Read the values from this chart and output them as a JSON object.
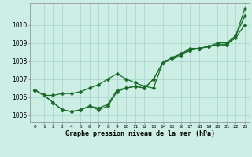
{
  "title": "Graphe pression niveau de la mer (hPa)",
  "bg_color": "#cceee4",
  "grid_color": "#aad9cc",
  "line_color": "#1a6b2a",
  "x_ticks": [
    0,
    1,
    2,
    3,
    4,
    5,
    6,
    7,
    8,
    9,
    10,
    11,
    12,
    13,
    14,
    15,
    16,
    17,
    18,
    19,
    20,
    21,
    22,
    23
  ],
  "ylim": [
    1004.6,
    1011.2
  ],
  "yticks": [
    1005,
    1006,
    1007,
    1008,
    1009,
    1010
  ],
  "line1_x": [
    0,
    1,
    2,
    3,
    4,
    5,
    6,
    7,
    8,
    9,
    10,
    11,
    12,
    13,
    14,
    15,
    16,
    17,
    18,
    19,
    20,
    21,
    22,
    23
  ],
  "line1_y": [
    1006.4,
    1006.1,
    1005.7,
    1005.3,
    1005.2,
    1005.3,
    1005.5,
    1005.3,
    1005.5,
    1006.3,
    1006.5,
    1006.6,
    1006.5,
    1007.0,
    1007.9,
    1008.1,
    1008.3,
    1008.6,
    1008.7,
    1008.8,
    1008.9,
    1008.9,
    1009.4,
    1010.5
  ],
  "line2_x": [
    0,
    1,
    2,
    3,
    4,
    5,
    6,
    7,
    8,
    9,
    10,
    11,
    12,
    13,
    14,
    15,
    16,
    17,
    18,
    19,
    20,
    21,
    22,
    23
  ],
  "line2_y": [
    1006.4,
    1006.1,
    1006.1,
    1006.2,
    1006.2,
    1006.3,
    1006.5,
    1006.7,
    1007.0,
    1007.3,
    1007.0,
    1006.8,
    1006.6,
    1006.5,
    1007.9,
    1008.1,
    1008.4,
    1008.6,
    1008.7,
    1008.8,
    1008.9,
    1008.9,
    1009.3,
    1010.0
  ],
  "line3_x": [
    0,
    1,
    2,
    3,
    4,
    5,
    6,
    7,
    8,
    9,
    10,
    11,
    12,
    13,
    14,
    15,
    16,
    17,
    18,
    19,
    20,
    21,
    22,
    23
  ],
  "line3_y": [
    1006.4,
    1006.1,
    1005.7,
    1005.3,
    1005.2,
    1005.3,
    1005.5,
    1005.4,
    1005.6,
    1006.4,
    1006.5,
    1006.6,
    1006.5,
    1007.0,
    1007.9,
    1008.2,
    1008.4,
    1008.7,
    1008.7,
    1008.8,
    1009.0,
    1009.0,
    1009.4,
    1010.9
  ]
}
